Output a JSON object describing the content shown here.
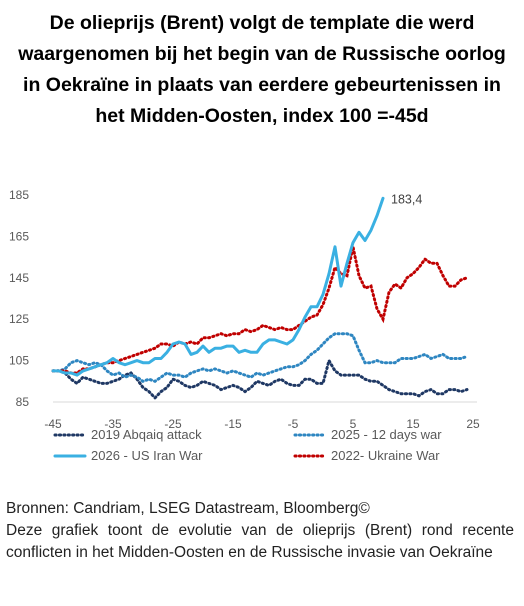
{
  "title": "De olieprijs (Brent) volgt de template die werd waargenomen bij het begin van de Russische oorlog in Oekraïne in plaats van eerdere gebeurtenissen in het Midden-Oosten, index 100 =-45d",
  "footer": {
    "sources": "Bronnen: Candriam, LSEG Datastream, Bloomberg©",
    "description": "Deze grafiek toont de evolutie van de olieprijs (Brent) rond recente conflicten in het Midden-Oosten en de Russische invasie van Oekraïne"
  },
  "chart_data": {
    "type": "line",
    "title": "",
    "xlabel": "",
    "ylabel": "",
    "xlim": [
      -45,
      25
    ],
    "ylim": [
      85,
      185
    ],
    "x_ticks": [
      "-45",
      "-35",
      "-25",
      "-15",
      "-5",
      "5",
      "15",
      "25"
    ],
    "y_ticks": [
      "185",
      "165",
      "145",
      "125",
      "105",
      "85"
    ],
    "grid": false,
    "legend_position": "bottom",
    "end_label": "183,4",
    "series": [
      {
        "name": "2019 Abqaiq attack",
        "color": "#1f3864",
        "style": "dotted",
        "x": [
          -45,
          -44,
          -43,
          -42,
          -41,
          -40,
          -39,
          -38,
          -37,
          -36,
          -35,
          -34,
          -33,
          -32,
          -31,
          -30,
          -29,
          -28,
          -27,
          -26,
          -25,
          -24,
          -23,
          -22,
          -21,
          -20,
          -19,
          -18,
          -17,
          -16,
          -15,
          -14,
          -13,
          -12,
          -11,
          -10,
          -9,
          -8,
          -7,
          -6,
          -5,
          -4,
          -3,
          -2,
          -1,
          0,
          1,
          2,
          3,
          4,
          5,
          6,
          7,
          8,
          9,
          10,
          11,
          12,
          13,
          14,
          15,
          16,
          17,
          18,
          19,
          20,
          21,
          22,
          23,
          24
        ],
        "y": [
          100,
          100,
          99,
          96,
          94,
          97,
          96,
          95,
          94,
          94,
          95,
          96,
          98,
          99,
          96,
          92,
          90,
          87,
          90,
          92,
          96,
          95,
          93,
          92,
          93,
          95,
          94,
          93,
          91,
          92,
          93,
          92,
          90,
          92,
          95,
          94,
          93,
          95,
          96,
          94,
          93,
          93,
          96,
          96,
          94,
          94,
          105,
          100,
          98,
          98,
          98,
          98,
          96,
          95,
          95,
          93,
          91,
          90,
          89,
          89,
          89,
          88,
          90,
          91,
          89,
          89,
          91,
          91,
          90,
          91
        ]
      },
      {
        "name": "2025 - 12 days war",
        "color": "#2e86c1",
        "style": "dotted",
        "x": [
          -45,
          -44,
          -43,
          -42,
          -41,
          -40,
          -39,
          -38,
          -37,
          -36,
          -35,
          -34,
          -33,
          -32,
          -31,
          -30,
          -29,
          -28,
          -27,
          -26,
          -25,
          -24,
          -23,
          -22,
          -21,
          -20,
          -19,
          -18,
          -17,
          -16,
          -15,
          -14,
          -13,
          -12,
          -11,
          -10,
          -9,
          -8,
          -7,
          -6,
          -5,
          -4,
          -3,
          -2,
          -1,
          0,
          1,
          2,
          3,
          4,
          5,
          6,
          7,
          8,
          9,
          10,
          11,
          12,
          13,
          14,
          15,
          16,
          17,
          18,
          19,
          20,
          21,
          22,
          23,
          24
        ],
        "y": [
          100,
          100,
          101,
          104,
          105,
          104,
          103,
          104,
          103,
          100,
          98,
          99,
          97,
          98,
          97,
          95,
          96,
          95,
          97,
          99,
          98,
          98,
          97,
          99,
          100,
          101,
          100,
          101,
          100,
          99,
          100,
          99,
          98,
          97,
          99,
          98,
          99,
          100,
          101,
          102,
          102,
          103,
          105,
          108,
          110,
          113,
          116,
          118,
          118,
          118,
          117,
          110,
          104,
          104,
          105,
          104,
          104,
          104,
          106,
          106,
          106,
          107,
          108,
          106,
          107,
          108,
          106,
          106,
          106,
          107
        ]
      },
      {
        "name": "2026 - US Iran War",
        "color": "#3ab0e2",
        "style": "solid",
        "x": [
          -45,
          -44,
          -43,
          -42,
          -41,
          -40,
          -39,
          -38,
          -37,
          -36,
          -35,
          -34,
          -33,
          -32,
          -31,
          -30,
          -29,
          -28,
          -27,
          -26,
          -25,
          -24,
          -23,
          -22,
          -21,
          -20,
          -19,
          -18,
          -17,
          -16,
          -15,
          -14,
          -13,
          -12,
          -11,
          -10,
          -9,
          -8,
          -7,
          -6,
          -5,
          -4,
          -3,
          -2,
          -1,
          0,
          1,
          2,
          3,
          4,
          5,
          6,
          7,
          8,
          9,
          10,
          11,
          12,
          13
        ],
        "y": [
          100,
          100,
          99,
          99,
          98,
          100,
          101,
          102,
          103,
          104,
          106,
          104,
          103,
          104,
          105,
          104,
          104,
          106,
          106,
          109,
          113,
          114,
          113,
          108,
          109,
          112,
          109,
          111,
          111,
          112,
          112,
          109,
          110,
          109,
          109,
          113,
          115,
          115,
          114,
          113,
          115,
          120,
          126,
          131,
          131,
          137,
          147,
          160,
          141,
          152,
          162,
          167,
          163,
          168,
          175,
          183.4,
          null,
          null,
          null
        ],
        "_note": ""
      },
      {
        "name": "2022- Ukraine War",
        "color": "#c00000",
        "style": "dotted",
        "x": [
          -45,
          -44,
          -43,
          -42,
          -41,
          -40,
          -39,
          -38,
          -37,
          -36,
          -35,
          -34,
          -33,
          -32,
          -31,
          -30,
          -29,
          -28,
          -27,
          -26,
          -25,
          -24,
          -23,
          -22,
          -21,
          -20,
          -19,
          -18,
          -17,
          -16,
          -15,
          -14,
          -13,
          -12,
          -11,
          -10,
          -9,
          -8,
          -7,
          -6,
          -5,
          -4,
          -3,
          -2,
          -1,
          0,
          1,
          2,
          3,
          4,
          5,
          6,
          7,
          8,
          9,
          10,
          11,
          12,
          13,
          14,
          15,
          16,
          17,
          18,
          19,
          20,
          21,
          22,
          23,
          24
        ],
        "y": [
          100,
          100,
          100,
          99,
          99,
          101,
          101,
          102,
          103,
          104,
          104,
          105,
          106,
          107,
          108,
          109,
          110,
          111,
          113,
          113,
          112,
          114,
          113,
          114,
          113,
          116,
          116,
          117,
          118,
          117,
          118,
          118,
          120,
          119,
          120,
          122,
          121,
          120,
          121,
          120,
          120,
          122,
          124,
          126,
          127,
          132,
          140,
          150,
          147,
          146,
          160,
          146,
          140,
          141,
          130,
          125,
          138,
          142,
          140,
          145,
          147,
          150,
          154,
          152,
          152,
          146,
          141,
          141,
          144,
          145
        ]
      }
    ]
  }
}
